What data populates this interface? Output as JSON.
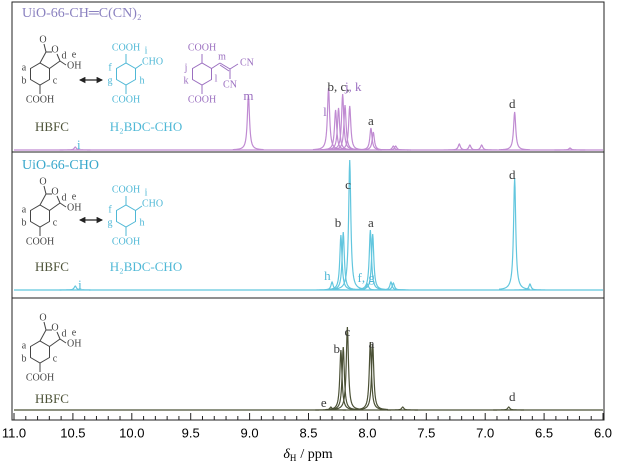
{
  "chart_data": {
    "type": "nmr",
    "xlabel": {
      "symbol": "δ",
      "subscript": "H",
      "unit": "/ ppm"
    },
    "xlim": [
      11.0,
      6.0
    ],
    "xticks": [
      {
        "value": 11.0,
        "label": "11.0"
      },
      {
        "value": 10.5,
        "label": "10.5"
      },
      {
        "value": 10.0,
        "label": "10.0"
      },
      {
        "value": 9.5,
        "label": "9.5"
      },
      {
        "value": 9.0,
        "label": "9.0"
      },
      {
        "value": 8.5,
        "label": "8.5"
      },
      {
        "value": 8.0,
        "label": "8.0"
      },
      {
        "value": 7.5,
        "label": "7.5"
      },
      {
        "value": 7.0,
        "label": "7.0"
      },
      {
        "value": 6.5,
        "label": "6.5"
      },
      {
        "value": 6.0,
        "label": "6.0"
      }
    ],
    "structures": {
      "hbfc": {
        "name": "HBFC",
        "texts": [
          "O",
          "O",
          "OH",
          "COOH",
          "a",
          "b",
          "c",
          "d",
          "e"
        ]
      },
      "bdc": {
        "name": "H₂BDC-CHO",
        "texts": [
          "COOH",
          "CHO",
          "COOH",
          "f",
          "g",
          "h",
          "i"
        ]
      },
      "product": {
        "texts": [
          "COOH",
          "COOH",
          "CN",
          "CN",
          "j",
          "k",
          "l",
          "m"
        ]
      }
    },
    "panels": [
      {
        "title": "UiO-66-CH═C(CN)₂",
        "color": "#c08bd2",
        "peaks": {
          "x": [
            10.48,
            9.01,
            8.33,
            8.27,
            8.245,
            8.21,
            8.19,
            8.15,
            7.97,
            7.95,
            7.78,
            7.76,
            7.22,
            7.13,
            7.03,
            6.75,
            6.28
          ],
          "values": [
            3,
            55,
            62,
            40,
            42,
            56,
            45,
            44,
            22,
            18,
            4,
            4,
            6,
            5,
            5,
            38,
            2
          ]
        },
        "labels": [
          "i",
          "m",
          "l",
          "b, c,",
          "j, k",
          "a",
          "d"
        ]
      },
      {
        "title": "UiO-66-CHO",
        "color": "#62c6de",
        "peaks": {
          "x": [
            10.48,
            8.3,
            8.225,
            8.205,
            8.15,
            8.0,
            7.975,
            7.955,
            7.8,
            7.78,
            6.75,
            6.62
          ],
          "values": [
            4,
            8,
            55,
            58,
            130,
            6,
            60,
            56,
            8,
            7,
            112,
            6
          ]
        },
        "labels": [
          "c",
          "b",
          "a",
          "h",
          "f, g",
          "i",
          "d"
        ]
      },
      {
        "color": "#4b5136",
        "peaks": {
          "x": [
            8.31,
            8.225,
            8.205,
            8.17,
            7.975,
            7.955,
            7.7,
            6.8
          ],
          "values": [
            3,
            60,
            63,
            83,
            68,
            66,
            3,
            3
          ]
        },
        "labels": [
          "c",
          "b",
          "a",
          "e",
          "d"
        ]
      }
    ]
  }
}
